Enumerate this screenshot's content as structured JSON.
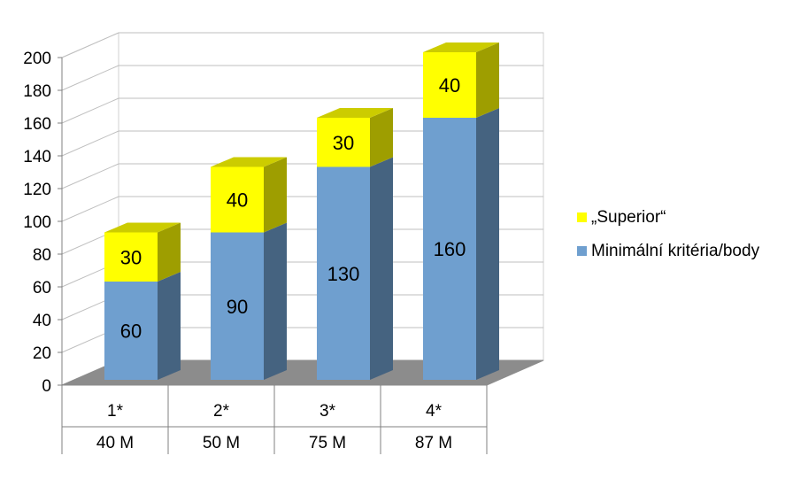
{
  "chart_data": {
    "type": "bar",
    "stacked": true,
    "three_d": true,
    "categories": [
      "1*",
      "2*",
      "3*",
      "4*"
    ],
    "subcategories": [
      "40 M",
      "50 M",
      "75 M",
      "87 M"
    ],
    "series": [
      {
        "name": "Minimální kritéria/body",
        "values": [
          60,
          90,
          130,
          160
        ],
        "color": "#6f9fcf"
      },
      {
        "name": "„Superior“",
        "values": [
          30,
          40,
          30,
          40
        ],
        "color": "#ffff00"
      }
    ],
    "ylim": [
      0,
      200
    ],
    "yticks": [
      0,
      20,
      40,
      60,
      80,
      100,
      120,
      140,
      160,
      180,
      200
    ],
    "grid": true,
    "legend_position": "right",
    "title": "",
    "xlabel": "",
    "ylabel": ""
  }
}
